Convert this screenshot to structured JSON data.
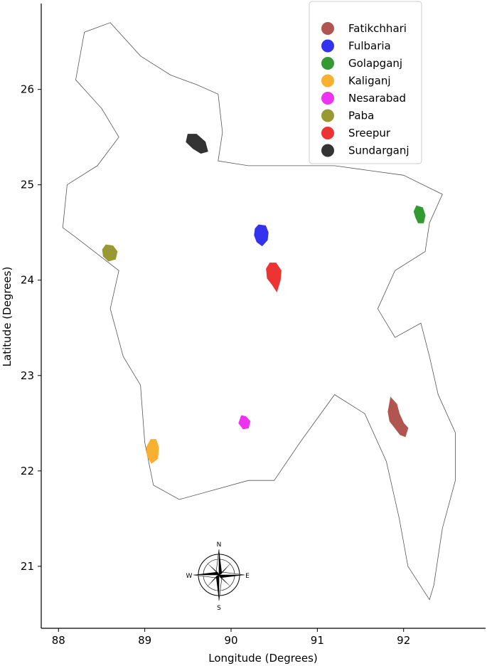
{
  "axes": {
    "xlabel": "Longitude (Degrees)",
    "ylabel": "Latitude (Degrees)",
    "xticks": [
      "88",
      "89",
      "90",
      "91",
      "92"
    ],
    "yticks": [
      "21",
      "22",
      "23",
      "24",
      "25",
      "26"
    ],
    "xlim": [
      87.8,
      92.95
    ],
    "ylim": [
      20.35,
      26.9
    ]
  },
  "country_outline": [
    [
      88.3,
      26.6
    ],
    [
      88.6,
      26.7
    ],
    [
      88.95,
      26.35
    ],
    [
      89.3,
      26.15
    ],
    [
      89.6,
      26.05
    ],
    [
      89.85,
      25.95
    ],
    [
      89.9,
      25.55
    ],
    [
      89.85,
      25.25
    ],
    [
      90.2,
      25.2
    ],
    [
      90.6,
      25.2
    ],
    [
      91.2,
      25.2
    ],
    [
      91.6,
      25.15
    ],
    [
      92.0,
      25.1
    ],
    [
      92.45,
      24.9
    ],
    [
      92.3,
      24.6
    ],
    [
      92.25,
      24.3
    ],
    [
      91.9,
      24.1
    ],
    [
      91.7,
      23.7
    ],
    [
      91.9,
      23.4
    ],
    [
      92.2,
      23.55
    ],
    [
      92.3,
      23.2
    ],
    [
      92.4,
      22.8
    ],
    [
      92.6,
      22.4
    ],
    [
      92.6,
      21.9
    ],
    [
      92.45,
      21.4
    ],
    [
      92.35,
      20.8
    ],
    [
      92.3,
      20.65
    ],
    [
      92.05,
      21.0
    ],
    [
      91.95,
      21.5
    ],
    [
      91.8,
      22.1
    ],
    [
      91.55,
      22.6
    ],
    [
      91.2,
      22.8
    ],
    [
      90.8,
      22.3
    ],
    [
      90.5,
      21.9
    ],
    [
      90.2,
      21.9
    ],
    [
      89.8,
      21.8
    ],
    [
      89.4,
      21.7
    ],
    [
      89.1,
      21.85
    ],
    [
      89.0,
      22.3
    ],
    [
      88.95,
      22.9
    ],
    [
      88.75,
      23.2
    ],
    [
      88.6,
      23.7
    ],
    [
      88.7,
      24.1
    ],
    [
      88.2,
      24.45
    ],
    [
      88.05,
      24.55
    ],
    [
      88.1,
      25.0
    ],
    [
      88.45,
      25.2
    ],
    [
      88.7,
      25.5
    ],
    [
      88.5,
      25.8
    ],
    [
      88.2,
      26.1
    ],
    [
      88.3,
      26.6
    ]
  ],
  "upazilas": [
    {
      "name": "Fatikchhari",
      "color": "#b05550",
      "outline": [
        [
          91.85,
          22.77
        ],
        [
          91.92,
          22.7
        ],
        [
          91.95,
          22.6
        ],
        [
          92.0,
          22.5
        ],
        [
          92.05,
          22.45
        ],
        [
          92.02,
          22.36
        ],
        [
          91.96,
          22.38
        ],
        [
          91.9,
          22.45
        ],
        [
          91.84,
          22.52
        ],
        [
          91.82,
          22.62
        ]
      ]
    },
    {
      "name": "Fulbaria",
      "color": "#3333ee",
      "outline": [
        [
          90.32,
          24.58
        ],
        [
          90.4,
          24.57
        ],
        [
          90.43,
          24.5
        ],
        [
          90.42,
          24.42
        ],
        [
          90.36,
          24.36
        ],
        [
          90.3,
          24.4
        ],
        [
          90.27,
          24.47
        ],
        [
          90.28,
          24.54
        ]
      ]
    },
    {
      "name": "Golapganj",
      "color": "#339933",
      "outline": [
        [
          92.15,
          24.78
        ],
        [
          92.22,
          24.76
        ],
        [
          92.25,
          24.68
        ],
        [
          92.23,
          24.6
        ],
        [
          92.17,
          24.6
        ],
        [
          92.14,
          24.66
        ],
        [
          92.12,
          24.72
        ]
      ]
    },
    {
      "name": "Kaliganj",
      "color": "#f7b030",
      "outline": [
        [
          89.07,
          22.33
        ],
        [
          89.13,
          22.33
        ],
        [
          89.16,
          22.25
        ],
        [
          89.15,
          22.13
        ],
        [
          89.08,
          22.08
        ],
        [
          89.03,
          22.15
        ],
        [
          89.02,
          22.25
        ]
      ]
    },
    {
      "name": "Nesarabad",
      "color": "#ee33ee",
      "outline": [
        [
          90.12,
          22.58
        ],
        [
          90.17,
          22.57
        ],
        [
          90.22,
          22.52
        ],
        [
          90.2,
          22.45
        ],
        [
          90.14,
          22.44
        ],
        [
          90.09,
          22.5
        ]
      ]
    },
    {
      "name": "Paba",
      "color": "#999933",
      "outline": [
        [
          88.55,
          24.37
        ],
        [
          88.63,
          24.36
        ],
        [
          88.68,
          24.3
        ],
        [
          88.66,
          24.22
        ],
        [
          88.58,
          24.2
        ],
        [
          88.52,
          24.25
        ],
        [
          88.51,
          24.32
        ]
      ]
    },
    {
      "name": "Sreepur",
      "color": "#ee3333",
      "outline": [
        [
          90.45,
          24.18
        ],
        [
          90.52,
          24.18
        ],
        [
          90.58,
          24.1
        ],
        [
          90.57,
          24.0
        ],
        [
          90.53,
          23.88
        ],
        [
          90.48,
          23.95
        ],
        [
          90.42,
          24.02
        ],
        [
          90.41,
          24.12
        ]
      ]
    },
    {
      "name": "Sundarganj",
      "color": "#333333",
      "outline": [
        [
          89.5,
          25.53
        ],
        [
          89.6,
          25.53
        ],
        [
          89.7,
          25.45
        ],
        [
          89.73,
          25.35
        ],
        [
          89.65,
          25.33
        ],
        [
          89.56,
          25.38
        ],
        [
          89.48,
          25.45
        ]
      ]
    }
  ],
  "compass": {
    "n": "N",
    "s": "S",
    "e": "E",
    "w": "W"
  }
}
